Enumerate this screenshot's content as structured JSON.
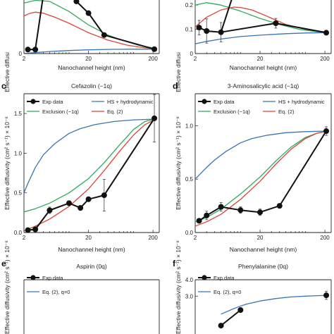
{
  "colors": {
    "exp": "#111111",
    "hs": "#3a73b5",
    "excl": "#2eaa5e",
    "eq2": "#d8453a"
  },
  "labels": {
    "xlabel": "Nanochannel height (nm)",
    "ylabel": "Effective diffusivity (cm² s⁻¹) × 10⁻⁶",
    "ylabel_cut": "Effective diffusi",
    "legend": {
      "exp": "Exp data",
      "hs": "HS + hydrodynamic",
      "excl": "Exclusion (−1q)",
      "eq2": "Eq. (2)",
      "eq2q0": "Eq. (2), q=0"
    }
  },
  "chart_data": [
    {
      "id": "a",
      "letter": "",
      "title": "",
      "type": "line",
      "xscale": "log",
      "xlim": [
        2,
        250
      ],
      "xticks": [
        {
          "v": 2,
          "label": "2"
        },
        {
          "v": 20,
          "label": "20"
        },
        {
          "v": 200,
          "label": "200"
        }
      ],
      "yticks": [
        {
          "v": 0,
          "label": "0"
        }
      ],
      "ylim": [
        0,
        1.8
      ],
      "series": [
        {
          "key": "hs",
          "x": [
            2,
            3,
            5,
            10,
            20,
            50,
            100,
            220
          ],
          "y": [
            0.005,
            0.03,
            0.06,
            0.09,
            0.11,
            0.125,
            0.13,
            0.13
          ]
        },
        {
          "key": "excl",
          "x": [
            2,
            3,
            5,
            10,
            20,
            40,
            70,
            120,
            220
          ],
          "y": [
            1.5,
            1.58,
            1.55,
            1.25,
            0.85,
            0.55,
            0.38,
            0.25,
            0.15
          ]
        },
        {
          "key": "eq2",
          "x": [
            2,
            2.5,
            3,
            4,
            6,
            10,
            20,
            40,
            80,
            150,
            220
          ],
          "y": [
            1.12,
            1.2,
            1.23,
            1.2,
            1.08,
            0.9,
            0.62,
            0.4,
            0.25,
            0.17,
            0.15
          ]
        },
        {
          "key": "exp",
          "markers": true,
          "x": [
            2.3,
            3.0,
            5.0,
            8.5,
            13,
            20,
            35,
            210
          ],
          "y": [
            0.12,
            0.12,
            3.0,
            1.85,
            1.55,
            1.2,
            0.55,
            0.13
          ]
        }
      ]
    },
    {
      "id": "b",
      "letter": "",
      "title": "",
      "type": "line",
      "xscale": "log",
      "xlim": [
        2,
        250
      ],
      "xticks": [
        {
          "v": 2,
          "label": "2"
        },
        {
          "v": 20,
          "label": "20"
        },
        {
          "v": 200,
          "label": "200"
        }
      ],
      "yticks": [
        {
          "v": 0,
          "label": "0"
        },
        {
          "v": 0.1,
          "label": "0.1"
        },
        {
          "v": 0.2,
          "label": "0.2"
        }
      ],
      "ylim": [
        0,
        0.25
      ],
      "series": [
        {
          "key": "hs",
          "x": [
            2,
            3,
            5,
            10,
            20,
            50,
            100,
            220
          ],
          "y": [
            0.04,
            0.05,
            0.06,
            0.07,
            0.076,
            0.082,
            0.085,
            0.086
          ]
        },
        {
          "key": "excl",
          "x": [
            2,
            3,
            5,
            10,
            20,
            40,
            80,
            150,
            220
          ],
          "y": [
            0.2,
            0.21,
            0.2,
            0.175,
            0.145,
            0.12,
            0.1,
            0.09,
            0.086
          ]
        },
        {
          "key": "eq2",
          "x": [
            2,
            3,
            5,
            8,
            10,
            15,
            25,
            50,
            100,
            220
          ],
          "y": [
            0.11,
            0.15,
            0.18,
            0.192,
            0.19,
            0.18,
            0.155,
            0.12,
            0.1,
            0.088
          ]
        },
        {
          "key": "exp",
          "markers": true,
          "x": [
            2.3,
            3.0,
            5.0,
            35,
            210
          ],
          "y": [
            0.107,
            0.093,
            0.088,
            0.125,
            0.086
          ],
          "err": [
            0.03,
            0.05,
            0.04,
            0.02,
            0.008
          ]
        },
        {
          "key": "exp",
          "markers": false,
          "x": [
            5.0,
            12
          ],
          "y": [
            0.088,
            0.4
          ]
        }
      ]
    },
    {
      "id": "c",
      "letter": "c",
      "title": "Cefazolin (−1q)",
      "type": "line",
      "xscale": "log",
      "xlim": [
        2,
        250
      ],
      "ylim": [
        0,
        1.75
      ],
      "xticks": [
        {
          "v": 2,
          "label": "2"
        },
        {
          "v": 20,
          "label": "20"
        },
        {
          "v": 200,
          "label": "200"
        }
      ],
      "yticks": [
        {
          "v": 0,
          "label": "0.0"
        },
        {
          "v": 0.5,
          "label": "0.5"
        },
        {
          "v": 1.0,
          "label": "1.0"
        },
        {
          "v": 1.5,
          "label": "1.5"
        }
      ],
      "legend": [
        "exp",
        "hs",
        "excl",
        "eq2"
      ],
      "series": [
        {
          "key": "hs",
          "x": [
            2,
            2.3,
            3,
            4,
            6,
            10,
            15,
            25,
            50,
            100,
            220
          ],
          "y": [
            0.5,
            0.62,
            0.82,
            0.98,
            1.12,
            1.25,
            1.31,
            1.36,
            1.4,
            1.42,
            1.43
          ]
        },
        {
          "key": "excl",
          "x": [
            2,
            3,
            5,
            10,
            20,
            35,
            60,
            100,
            150,
            220
          ],
          "y": [
            0.26,
            0.3,
            0.37,
            0.5,
            0.68,
            0.88,
            1.1,
            1.3,
            1.4,
            1.43
          ]
        },
        {
          "key": "eq2",
          "x": [
            2,
            3,
            5,
            10,
            20,
            35,
            60,
            100,
            150,
            220
          ],
          "y": [
            0.02,
            0.08,
            0.17,
            0.33,
            0.55,
            0.78,
            1.02,
            1.23,
            1.36,
            1.43
          ]
        },
        {
          "key": "exp",
          "markers": true,
          "x": [
            2.3,
            3.0,
            5.0,
            10.0,
            15.0,
            20.0,
            35.0,
            210
          ],
          "y": [
            0.03,
            0.04,
            0.28,
            0.37,
            0.31,
            0.42,
            0.47,
            1.44
          ],
          "err": [
            0.02,
            0.03,
            0.04,
            0.03,
            0.03,
            0.03,
            0.2,
            0.3
          ]
        }
      ]
    },
    {
      "id": "d",
      "letter": "d",
      "title": "3-Aminosalicylic acid (−1q)",
      "type": "line",
      "xscale": "log",
      "xlim": [
        2,
        250
      ],
      "ylim": [
        0,
        1.3
      ],
      "xticks": [
        {
          "v": 2,
          "label": "2"
        },
        {
          "v": 20,
          "label": "20"
        },
        {
          "v": 200,
          "label": "200"
        }
      ],
      "yticks": [
        {
          "v": 0,
          "label": "0.0"
        },
        {
          "v": 0.5,
          "label": "0.5"
        },
        {
          "v": 1.0,
          "label": "1.0"
        }
      ],
      "legend": [
        "exp",
        "hs",
        "excl",
        "eq2"
      ],
      "series": [
        {
          "key": "hs",
          "x": [
            2,
            2.5,
            3,
            4,
            6,
            10,
            15,
            25,
            50,
            100,
            220
          ],
          "y": [
            0.5,
            0.56,
            0.61,
            0.68,
            0.76,
            0.84,
            0.88,
            0.91,
            0.935,
            0.945,
            0.95
          ]
        },
        {
          "key": "excl",
          "x": [
            2,
            3,
            5,
            10,
            20,
            35,
            60,
            100,
            150,
            220
          ],
          "y": [
            0.1,
            0.14,
            0.22,
            0.36,
            0.52,
            0.67,
            0.8,
            0.89,
            0.93,
            0.95
          ]
        },
        {
          "key": "eq2",
          "x": [
            2,
            3,
            5,
            10,
            20,
            35,
            60,
            100,
            150,
            220
          ],
          "y": [
            0.06,
            0.1,
            0.17,
            0.31,
            0.48,
            0.64,
            0.78,
            0.88,
            0.93,
            0.95
          ]
        },
        {
          "key": "exp",
          "markers": true,
          "x": [
            2.3,
            3.0,
            5.0,
            10.0,
            20.0,
            40.0,
            210
          ],
          "y": [
            0.11,
            0.16,
            0.24,
            0.21,
            0.19,
            0.25,
            0.95
          ],
          "err": [
            0.02,
            0.04,
            0.04,
            0.03,
            0.03,
            0.02,
            0.04
          ]
        }
      ]
    },
    {
      "id": "e",
      "letter": "e",
      "title": "Aspirin (0q)",
      "type": "line",
      "xscale": "log",
      "xlim": [
        2,
        250
      ],
      "ylim": [
        0,
        3.0
      ],
      "xticks": [],
      "yticks": [],
      "legend": [
        "exp",
        "eq2q0"
      ],
      "series": []
    },
    {
      "id": "f",
      "letter": "f",
      "title": "Phenylalanine (0q)",
      "type": "line",
      "xscale": "log",
      "xlim": [
        2,
        250
      ],
      "ylim": [
        0,
        4.0
      ],
      "xticks": [],
      "yticks": [
        {
          "v": 3.0,
          "label": "3.0"
        },
        {
          "v": 4.0,
          "label": "4.0"
        }
      ],
      "legend": [
        "exp",
        "eq2q0"
      ],
      "series": [
        {
          "key": "hs",
          "x": [
            5,
            8,
            12,
            20,
            35,
            60,
            100,
            150,
            220
          ],
          "y": [
            1.9,
            2.25,
            2.5,
            2.7,
            2.85,
            2.95,
            3.0,
            3.03,
            3.05
          ]
        },
        {
          "key": "exp",
          "markers": true,
          "x": [
            5,
            10
          ],
          "y": [
            1.2,
            2.15
          ]
        },
        {
          "key": "exp",
          "markers": true,
          "x": [
            210
          ],
          "y": [
            3.05
          ],
          "err": [
            0.25
          ]
        }
      ]
    }
  ]
}
